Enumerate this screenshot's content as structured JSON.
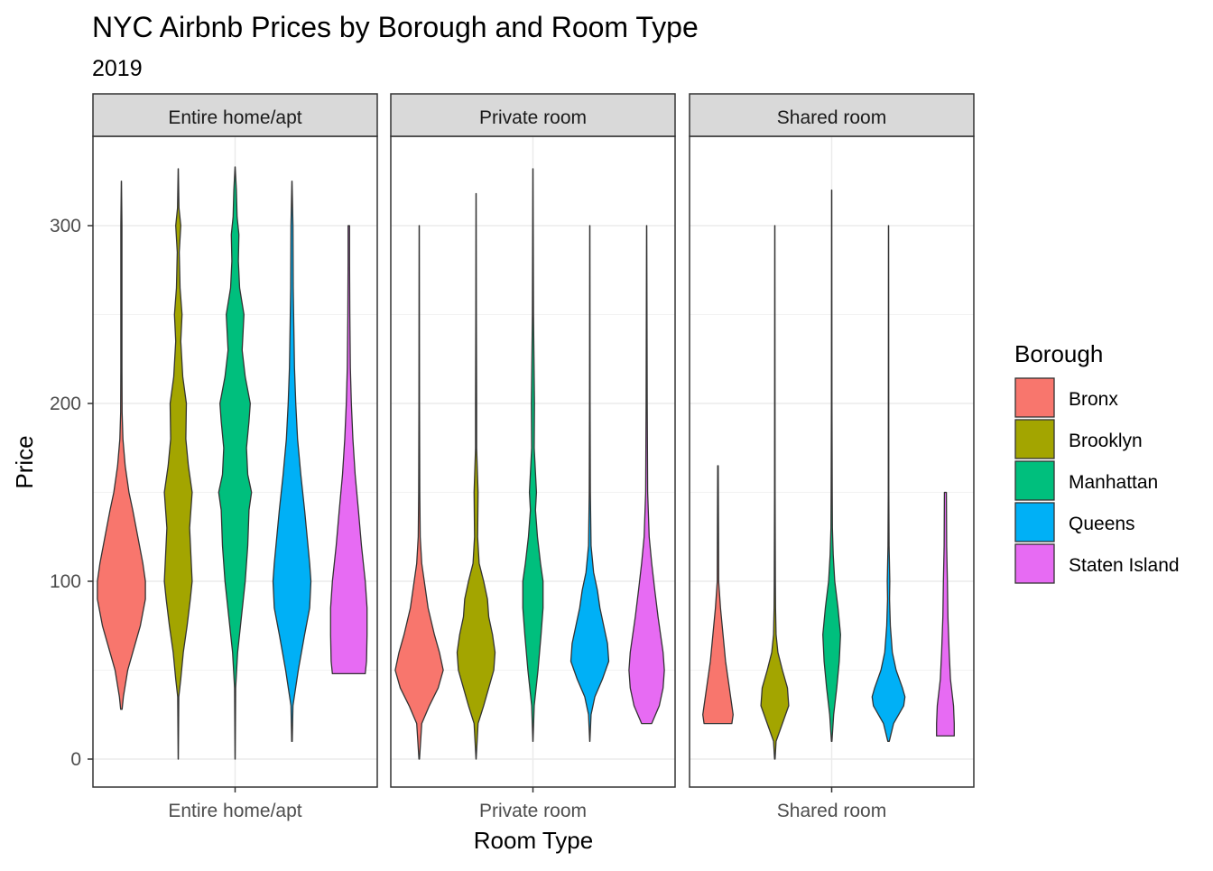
{
  "chart_data": {
    "type": "violin",
    "title": "NYC Airbnb Prices by Borough and Room Type",
    "subtitle": "2019",
    "xlabel": "Room Type",
    "ylabel": "Price",
    "ylim": [
      -15,
      355
    ],
    "yticks": [
      0,
      100,
      200,
      300
    ],
    "grid": true,
    "facets": [
      "Entire home/apt",
      "Private room",
      "Shared room"
    ],
    "legend": {
      "title": "Borough",
      "position": "right",
      "entries": [
        {
          "name": "Bronx",
          "color": "#F8766D"
        },
        {
          "name": "Brooklyn",
          "color": "#A3A500"
        },
        {
          "name": "Manhattan",
          "color": "#00BF7D"
        },
        {
          "name": "Queens",
          "color": "#00B0F6"
        },
        {
          "name": "Staten Island",
          "color": "#E76BF3"
        }
      ]
    },
    "series": [
      {
        "facet": "Entire home/apt",
        "borough": "Bronx",
        "min": 28,
        "max": 325,
        "density": [
          [
            28,
            0.03
          ],
          [
            35,
            0.08
          ],
          [
            50,
            0.25
          ],
          [
            60,
            0.45
          ],
          [
            75,
            0.75
          ],
          [
            90,
            0.95
          ],
          [
            100,
            0.95
          ],
          [
            110,
            0.85
          ],
          [
            125,
            0.65
          ],
          [
            140,
            0.45
          ],
          [
            150,
            0.3
          ],
          [
            165,
            0.15
          ],
          [
            180,
            0.06
          ],
          [
            195,
            0.03
          ],
          [
            220,
            0.02
          ],
          [
            250,
            0.02
          ],
          [
            280,
            0.02
          ],
          [
            300,
            0.02
          ],
          [
            325,
            0.005
          ]
        ]
      },
      {
        "facet": "Entire home/apt",
        "borough": "Brooklyn",
        "min": 0,
        "max": 332,
        "density": [
          [
            0,
            0.005
          ],
          [
            35,
            0.02
          ],
          [
            45,
            0.1
          ],
          [
            60,
            0.2
          ],
          [
            75,
            0.35
          ],
          [
            90,
            0.48
          ],
          [
            100,
            0.55
          ],
          [
            115,
            0.5
          ],
          [
            130,
            0.45
          ],
          [
            150,
            0.55
          ],
          [
            165,
            0.4
          ],
          [
            180,
            0.3
          ],
          [
            200,
            0.32
          ],
          [
            215,
            0.18
          ],
          [
            235,
            0.1
          ],
          [
            250,
            0.15
          ],
          [
            265,
            0.07
          ],
          [
            285,
            0.04
          ],
          [
            300,
            0.1
          ],
          [
            310,
            0.03
          ],
          [
            332,
            0.005
          ]
        ]
      },
      {
        "facet": "Entire home/apt",
        "borough": "Manhattan",
        "min": 0,
        "max": 333,
        "density": [
          [
            0,
            0.005
          ],
          [
            40,
            0.02
          ],
          [
            60,
            0.1
          ],
          [
            80,
            0.25
          ],
          [
            100,
            0.4
          ],
          [
            120,
            0.5
          ],
          [
            140,
            0.55
          ],
          [
            150,
            0.65
          ],
          [
            160,
            0.5
          ],
          [
            175,
            0.45
          ],
          [
            190,
            0.55
          ],
          [
            200,
            0.6
          ],
          [
            215,
            0.4
          ],
          [
            230,
            0.28
          ],
          [
            250,
            0.35
          ],
          [
            265,
            0.18
          ],
          [
            280,
            0.13
          ],
          [
            295,
            0.15
          ],
          [
            305,
            0.08
          ],
          [
            320,
            0.05
          ],
          [
            333,
            0.005
          ]
        ]
      },
      {
        "facet": "Entire home/apt",
        "borough": "Queens",
        "min": 10,
        "max": 325,
        "density": [
          [
            10,
            0.01
          ],
          [
            30,
            0.04
          ],
          [
            50,
            0.25
          ],
          [
            70,
            0.5
          ],
          [
            85,
            0.7
          ],
          [
            100,
            0.75
          ],
          [
            110,
            0.7
          ],
          [
            125,
            0.6
          ],
          [
            140,
            0.5
          ],
          [
            160,
            0.35
          ],
          [
            180,
            0.22
          ],
          [
            200,
            0.15
          ],
          [
            220,
            0.1
          ],
          [
            245,
            0.07
          ],
          [
            265,
            0.05
          ],
          [
            300,
            0.04
          ],
          [
            325,
            0.005
          ]
        ]
      },
      {
        "facet": "Entire home/apt",
        "borough": "Staten Island",
        "min": 48,
        "max": 300,
        "density": [
          [
            48,
            0.65
          ],
          [
            55,
            0.7
          ],
          [
            70,
            0.72
          ],
          [
            85,
            0.72
          ],
          [
            100,
            0.65
          ],
          [
            120,
            0.5
          ],
          [
            140,
            0.38
          ],
          [
            160,
            0.25
          ],
          [
            180,
            0.16
          ],
          [
            200,
            0.1
          ],
          [
            220,
            0.06
          ],
          [
            250,
            0.04
          ],
          [
            280,
            0.03
          ],
          [
            300,
            0.03
          ]
        ]
      },
      {
        "facet": "Private room",
        "borough": "Bronx",
        "min": 0,
        "max": 300,
        "density": [
          [
            0,
            0.01
          ],
          [
            20,
            0.1
          ],
          [
            30,
            0.4
          ],
          [
            40,
            0.75
          ],
          [
            50,
            0.95
          ],
          [
            60,
            0.8
          ],
          [
            70,
            0.6
          ],
          [
            85,
            0.35
          ],
          [
            100,
            0.2
          ],
          [
            110,
            0.1
          ],
          [
            125,
            0.04
          ],
          [
            150,
            0.02
          ],
          [
            200,
            0.01
          ],
          [
            300,
            0.005
          ]
        ]
      },
      {
        "facet": "Private room",
        "borough": "Brooklyn",
        "min": 0,
        "max": 318,
        "density": [
          [
            0,
            0.005
          ],
          [
            20,
            0.08
          ],
          [
            30,
            0.3
          ],
          [
            40,
            0.5
          ],
          [
            50,
            0.7
          ],
          [
            60,
            0.75
          ],
          [
            70,
            0.65
          ],
          [
            80,
            0.5
          ],
          [
            90,
            0.45
          ],
          [
            100,
            0.3
          ],
          [
            110,
            0.12
          ],
          [
            125,
            0.06
          ],
          [
            150,
            0.08
          ],
          [
            175,
            0.02
          ],
          [
            200,
            0.02
          ],
          [
            250,
            0.01
          ],
          [
            318,
            0.005
          ]
        ]
      },
      {
        "facet": "Private room",
        "borough": "Manhattan",
        "min": 10,
        "max": 332,
        "density": [
          [
            10,
            0.005
          ],
          [
            30,
            0.05
          ],
          [
            50,
            0.2
          ],
          [
            70,
            0.32
          ],
          [
            85,
            0.4
          ],
          [
            100,
            0.4
          ],
          [
            110,
            0.3
          ],
          [
            125,
            0.18
          ],
          [
            140,
            0.1
          ],
          [
            150,
            0.14
          ],
          [
            175,
            0.05
          ],
          [
            200,
            0.06
          ],
          [
            250,
            0.02
          ],
          [
            332,
            0.005
          ]
        ]
      },
      {
        "facet": "Private room",
        "borough": "Queens",
        "min": 10,
        "max": 300,
        "density": [
          [
            10,
            0.005
          ],
          [
            25,
            0.05
          ],
          [
            35,
            0.2
          ],
          [
            45,
            0.5
          ],
          [
            55,
            0.75
          ],
          [
            65,
            0.7
          ],
          [
            75,
            0.55
          ],
          [
            85,
            0.4
          ],
          [
            95,
            0.3
          ],
          [
            105,
            0.15
          ],
          [
            120,
            0.05
          ],
          [
            150,
            0.02
          ],
          [
            200,
            0.01
          ],
          [
            300,
            0.005
          ]
        ]
      },
      {
        "facet": "Private room",
        "borough": "Staten Island",
        "min": 20,
        "max": 300,
        "density": [
          [
            20,
            0.2
          ],
          [
            30,
            0.5
          ],
          [
            40,
            0.65
          ],
          [
            50,
            0.7
          ],
          [
            60,
            0.65
          ],
          [
            70,
            0.55
          ],
          [
            80,
            0.45
          ],
          [
            95,
            0.32
          ],
          [
            110,
            0.2
          ],
          [
            125,
            0.1
          ],
          [
            150,
            0.04
          ],
          [
            200,
            0.02
          ],
          [
            300,
            0.005
          ]
        ]
      },
      {
        "facet": "Shared room",
        "borough": "Bronx",
        "min": 20,
        "max": 165,
        "density": [
          [
            20,
            0.55
          ],
          [
            25,
            0.6
          ],
          [
            30,
            0.55
          ],
          [
            40,
            0.45
          ],
          [
            55,
            0.3
          ],
          [
            70,
            0.2
          ],
          [
            85,
            0.1
          ],
          [
            100,
            0.03
          ],
          [
            130,
            0.02
          ],
          [
            165,
            0.01
          ]
        ]
      },
      {
        "facet": "Shared room",
        "borough": "Brooklyn",
        "min": 0,
        "max": 300,
        "density": [
          [
            0,
            0.01
          ],
          [
            10,
            0.05
          ],
          [
            20,
            0.3
          ],
          [
            30,
            0.55
          ],
          [
            40,
            0.5
          ],
          [
            50,
            0.3
          ],
          [
            60,
            0.12
          ],
          [
            70,
            0.05
          ],
          [
            85,
            0.03
          ],
          [
            100,
            0.02
          ],
          [
            150,
            0.01
          ],
          [
            300,
            0.005
          ]
        ]
      },
      {
        "facet": "Shared room",
        "borough": "Manhattan",
        "min": 10,
        "max": 320,
        "density": [
          [
            10,
            0.01
          ],
          [
            25,
            0.08
          ],
          [
            40,
            0.2
          ],
          [
            55,
            0.3
          ],
          [
            70,
            0.35
          ],
          [
            85,
            0.25
          ],
          [
            100,
            0.12
          ],
          [
            115,
            0.06
          ],
          [
            130,
            0.03
          ],
          [
            150,
            0.02
          ],
          [
            200,
            0.01
          ],
          [
            320,
            0.005
          ]
        ]
      },
      {
        "facet": "Shared room",
        "borough": "Queens",
        "min": 10,
        "max": 300,
        "density": [
          [
            10,
            0.03
          ],
          [
            20,
            0.2
          ],
          [
            30,
            0.6
          ],
          [
            35,
            0.65
          ],
          [
            40,
            0.55
          ],
          [
            50,
            0.3
          ],
          [
            60,
            0.15
          ],
          [
            75,
            0.07
          ],
          [
            90,
            0.04
          ],
          [
            100,
            0.05
          ],
          [
            120,
            0.02
          ],
          [
            150,
            0.01
          ],
          [
            300,
            0.005
          ]
        ]
      },
      {
        "facet": "Shared room",
        "borough": "Staten Island",
        "min": 13,
        "max": 150,
        "density": [
          [
            13,
            0.35
          ],
          [
            20,
            0.35
          ],
          [
            30,
            0.32
          ],
          [
            45,
            0.2
          ],
          [
            60,
            0.15
          ],
          [
            80,
            0.1
          ],
          [
            100,
            0.08
          ],
          [
            120,
            0.05
          ],
          [
            150,
            0.04
          ]
        ]
      }
    ]
  }
}
